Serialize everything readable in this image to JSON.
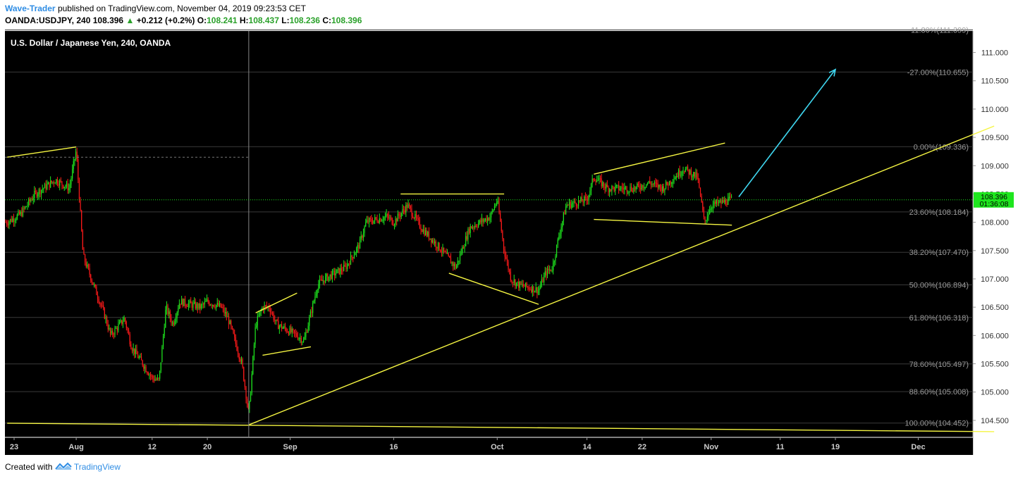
{
  "header": {
    "author": "Wave-Trader",
    "published_text": "published on TradingView.com, November 04, 2019 09:23:53 CET",
    "symbol": "OANDA:USDJPY, 240",
    "last": "108.396",
    "change_arrow": "▲",
    "change": "+0.212 (+0.2%)",
    "o_label": "O:",
    "o_value": "108.241",
    "h_label": "H:",
    "h_value": "108.437",
    "l_label": "L:",
    "l_value": "108.236",
    "c_label": "C:",
    "c_value": "108.396"
  },
  "footer": {
    "created_with": "Created with",
    "brand": "TradingView"
  },
  "chart_data": {
    "type": "candlestick",
    "title": "U.S. Dollar / Japanese Yen, 240, OANDA",
    "ylim": [
      104.2,
      111.38
    ],
    "y_ticks": [
      "111.000",
      "110.500",
      "110.000",
      "109.500",
      "109.000",
      "108.500",
      "108.000",
      "107.500",
      "107.000",
      "106.500",
      "106.000",
      "105.500",
      "105.000",
      "104.500"
    ],
    "x_ticks": [
      {
        "label": "23",
        "date": "2019-07-23"
      },
      {
        "label": "Aug",
        "date": "2019-08-01"
      },
      {
        "label": "12",
        "date": "2019-08-12"
      },
      {
        "label": "20",
        "date": "2019-08-20"
      },
      {
        "label": "Sep",
        "date": "2019-09-01"
      },
      {
        "label": "16",
        "date": "2019-09-16"
      },
      {
        "label": "Oct",
        "date": "2019-10-01"
      },
      {
        "label": "14",
        "date": "2019-10-14"
      },
      {
        "label": "22",
        "date": "2019-10-22"
      },
      {
        "label": "Nov",
        "date": "2019-11-01"
      },
      {
        "label": "11",
        "date": "2019-11-11"
      },
      {
        "label": "19",
        "date": "2019-11-19"
      },
      {
        "label": "Dec",
        "date": "2019-12-01"
      }
    ],
    "price_path": [
      [
        "2019-07-22",
        108.0
      ],
      [
        "2019-07-24",
        108.15
      ],
      [
        "2019-07-26",
        108.5
      ],
      [
        "2019-07-29",
        108.75
      ],
      [
        "2019-07-31",
        108.6
      ],
      [
        "2019-08-01",
        109.28
      ],
      [
        "2019-08-02",
        107.4
      ],
      [
        "2019-08-05",
        106.4
      ],
      [
        "2019-08-06",
        106.0
      ],
      [
        "2019-08-08",
        106.3
      ],
      [
        "2019-08-09",
        105.8
      ],
      [
        "2019-08-12",
        105.25
      ],
      [
        "2019-08-13",
        105.2
      ],
      [
        "2019-08-14",
        106.5
      ],
      [
        "2019-08-15",
        106.2
      ],
      [
        "2019-08-16",
        106.6
      ],
      [
        "2019-08-19",
        106.5
      ],
      [
        "2019-08-20",
        106.6
      ],
      [
        "2019-08-22",
        106.5
      ],
      [
        "2019-08-23",
        106.3
      ],
      [
        "2019-08-25",
        105.5
      ],
      [
        "2019-08-26",
        104.6
      ],
      [
        "2019-08-27",
        106.2
      ],
      [
        "2019-08-28",
        106.5
      ],
      [
        "2019-08-29",
        106.5
      ],
      [
        "2019-08-30",
        106.2
      ],
      [
        "2019-09-02",
        106.0
      ],
      [
        "2019-09-03",
        105.9
      ],
      [
        "2019-09-05",
        106.9
      ],
      [
        "2019-09-06",
        107.0
      ],
      [
        "2019-09-09",
        107.2
      ],
      [
        "2019-09-11",
        107.6
      ],
      [
        "2019-09-12",
        108.0
      ],
      [
        "2019-09-15",
        108.1
      ],
      [
        "2019-09-16",
        108.0
      ],
      [
        "2019-09-18",
        108.3
      ],
      [
        "2019-09-20",
        107.9
      ],
      [
        "2019-09-23",
        107.5
      ],
      [
        "2019-09-25",
        107.2
      ],
      [
        "2019-09-27",
        107.9
      ],
      [
        "2019-09-30",
        108.1
      ],
      [
        "2019-10-01",
        108.4
      ],
      [
        "2019-10-02",
        107.5
      ],
      [
        "2019-10-03",
        107.0
      ],
      [
        "2019-10-04",
        106.9
      ],
      [
        "2019-10-07",
        106.8
      ],
      [
        "2019-10-08",
        107.1
      ],
      [
        "2019-10-09",
        107.2
      ],
      [
        "2019-10-10",
        107.8
      ],
      [
        "2019-10-11",
        108.3
      ],
      [
        "2019-10-14",
        108.4
      ],
      [
        "2019-10-15",
        108.8
      ],
      [
        "2019-10-17",
        108.6
      ],
      [
        "2019-10-21",
        108.6
      ],
      [
        "2019-10-23",
        108.7
      ],
      [
        "2019-10-25",
        108.6
      ],
      [
        "2019-10-28",
        108.95
      ],
      [
        "2019-10-30",
        108.8
      ],
      [
        "2019-10-31",
        108.0
      ],
      [
        "2019-11-01",
        108.3
      ],
      [
        "2019-11-04",
        108.4
      ]
    ],
    "last_price": {
      "value": "108.396",
      "countdown": "01:36:08"
    },
    "fibonacci": [
      {
        "label": "11.80%(111.399)",
        "value": 111.399
      },
      {
        "label": "-27.00%(110.655)",
        "value": 110.655
      },
      {
        "label": "0.00%(109.336)",
        "value": 109.336
      },
      {
        "label": "23.60%(108.184)",
        "value": 108.184
      },
      {
        "label": "38.20%(107.470)",
        "value": 107.47
      },
      {
        "label": "50.00%(106.894)",
        "value": 106.894
      },
      {
        "label": "61.80%(106.318)",
        "value": 106.318
      },
      {
        "label": "78.60%(105.497)",
        "value": 105.497
      },
      {
        "label": "88.60%(105.008)",
        "value": 105.008
      },
      {
        "label": "100.00%(104.452)",
        "value": 104.452
      }
    ],
    "trendlines": [
      {
        "from": [
          "2019-07-22",
          109.15
        ],
        "to": [
          "2019-08-01",
          109.33
        ]
      },
      {
        "from": [
          "2019-08-26",
          104.42
        ],
        "to": [
          "2019-12-12",
          109.7
        ]
      },
      {
        "from": [
          "2019-07-22",
          104.45
        ],
        "to": [
          "2019-12-12",
          104.3
        ]
      },
      {
        "from": [
          "2019-08-27",
          106.4
        ],
        "to": [
          "2019-09-02",
          106.75
        ]
      },
      {
        "from": [
          "2019-08-28",
          105.65
        ],
        "to": [
          "2019-09-04",
          105.8
        ]
      },
      {
        "from": [
          "2019-09-17",
          108.5
        ],
        "to": [
          "2019-10-02",
          108.5
        ]
      },
      {
        "from": [
          "2019-09-24",
          107.1
        ],
        "to": [
          "2019-10-07",
          106.55
        ]
      },
      {
        "from": [
          "2019-10-15",
          108.85
        ],
        "to": [
          "2019-11-03",
          109.4
        ]
      },
      {
        "from": [
          "2019-10-15",
          108.05
        ],
        "to": [
          "2019-11-04",
          107.95
        ]
      }
    ],
    "projection_arrow": {
      "from": [
        "2019-11-05",
        108.45
      ],
      "to": [
        "2019-11-19",
        110.7
      ]
    },
    "crosshair": {
      "date": "2019-08-26",
      "price": 109.15
    }
  }
}
